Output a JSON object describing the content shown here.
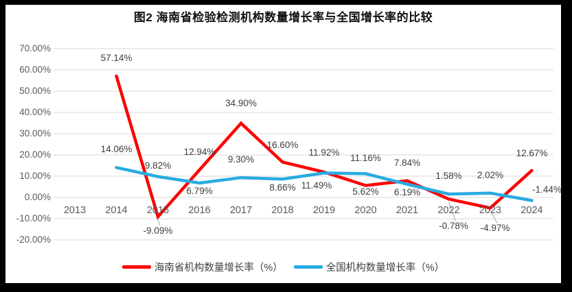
{
  "chart": {
    "title": "图2 海南省检验检测机构数量增长率与全国增长率的比较"
  },
  "chart_data": {
    "type": "line",
    "title": "图2 海南省检验检测机构数量增长率与全国增长率的比较",
    "categories": [
      "2013",
      "2014",
      "2015",
      "2016",
      "2017",
      "2018",
      "2019",
      "2020",
      "2021",
      "2022",
      "2023",
      "2024"
    ],
    "series": [
      {
        "name": "海南省机构数量增长率（%）",
        "color": "#FE0000",
        "values": [
          null,
          57.14,
          -9.09,
          12.94,
          34.9,
          16.6,
          11.92,
          5.62,
          7.84,
          -0.78,
          -4.97,
          12.67
        ],
        "labels": [
          null,
          "57.14%",
          "-9.09%",
          "12.94%",
          "34.90%",
          "16.60%",
          "11.92%",
          "5.62%",
          "7.84%",
          "-0.78%",
          "-4.97%",
          "12.67%"
        ]
      },
      {
        "name": "全国机构数量增长率（%）",
        "color": "#29ABE2",
        "values": [
          null,
          14.06,
          9.82,
          6.79,
          9.3,
          8.66,
          11.49,
          11.16,
          6.19,
          1.58,
          2.02,
          -1.44
        ],
        "labels": [
          null,
          "14.06%",
          "9.82%",
          "6.79%",
          "9.30%",
          "8.66%",
          "11.49%",
          "11.16%",
          "6.19%",
          "1.58%",
          "2.02%",
          "-1.44%"
        ]
      }
    ],
    "y_axis": {
      "ticks": [
        "70.00%",
        "60.00%",
        "50.00%",
        "40.00%",
        "30.00%",
        "20.00%",
        "10.00%",
        "0.00%",
        "-10.00%",
        "-20.00%"
      ],
      "max": 70,
      "min": -20,
      "step": 10
    },
    "grid": true,
    "grid_color": "#D9D9D9",
    "data_labels": true,
    "legend_position": "bottom"
  }
}
